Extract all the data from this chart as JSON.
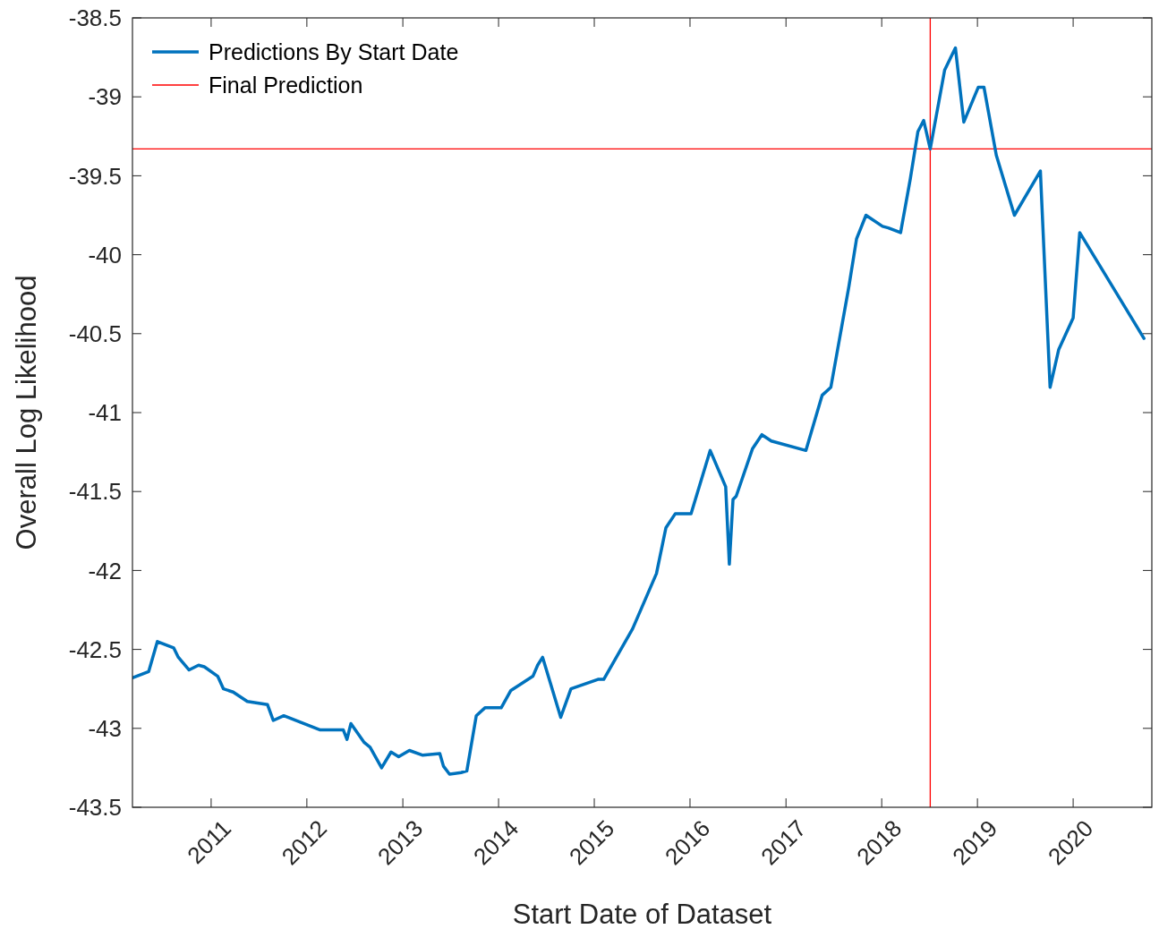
{
  "chart_data": {
    "type": "line",
    "xlabel": "Start Date of Dataset",
    "ylabel": "Overall Log Likelihood",
    "x": [
      "2010-03-07",
      "2010-05-08",
      "2010-06-10",
      "2010-08-11",
      "2010-08-29",
      "2010-10-09",
      "2010-11-14",
      "2010-12-06",
      "2011-01-26",
      "2011-02-17",
      "2011-03-26",
      "2011-05-19",
      "2011-08-04",
      "2011-08-26",
      "2011-10-05",
      "2012-02-21",
      "2012-05-19",
      "2012-06-02",
      "2012-06-17",
      "2012-08-07",
      "2012-08-29",
      "2012-10-12",
      "2012-11-17",
      "2012-12-16",
      "2013-01-26",
      "2013-03-18",
      "2013-05-22",
      "2013-06-05",
      "2013-06-28",
      "2013-08-11",
      "2013-09-02",
      "2013-10-08",
      "2013-11-10",
      "2014-01-11",
      "2014-02-17",
      "2014-05-12",
      "2014-05-30",
      "2014-06-18",
      "2014-08-26",
      "2014-10-04",
      "2015-01-15",
      "2015-02-06",
      "2015-05-27",
      "2015-08-26",
      "2015-10-01",
      "2015-11-06",
      "2016-01-05",
      "2016-03-18",
      "2016-05-16",
      "2016-05-30",
      "2016-06-13",
      "2016-06-25",
      "2016-08-26",
      "2016-10-01",
      "2016-11-06",
      "2017-03-18",
      "2017-05-19",
      "2017-06-21",
      "2017-08-29",
      "2017-09-27",
      "2017-11-02",
      "2018-01-04",
      "2018-01-26",
      "2018-03-14",
      "2018-04-20",
      "2018-05-19",
      "2018-06-10",
      "2018-07-05",
      "2018-08-29",
      "2018-10-09",
      "2018-11-10",
      "2019-01-04",
      "2019-01-26",
      "2019-03-14",
      "2019-05-22",
      "2019-08-29",
      "2019-10-05",
      "2019-11-07",
      "2020-01-01",
      "2020-01-26",
      "2020-09-27"
    ],
    "series": [
      {
        "name": "Predictions By Start Date",
        "color": "#0072bd",
        "values": [
          -42.68,
          -42.64,
          -42.45,
          -42.49,
          -42.55,
          -42.63,
          -42.6,
          -42.61,
          -42.67,
          -42.75,
          -42.77,
          -42.83,
          -42.85,
          -42.95,
          -42.92,
          -43.01,
          -43.01,
          -43.07,
          -42.97,
          -43.09,
          -43.12,
          -43.25,
          -43.15,
          -43.18,
          -43.14,
          -43.17,
          -43.16,
          -43.24,
          -43.29,
          -43.28,
          -43.27,
          -42.92,
          -42.87,
          -42.87,
          -42.76,
          -42.67,
          -42.6,
          -42.55,
          -42.93,
          -42.75,
          -42.69,
          -42.69,
          -42.37,
          -42.02,
          -41.73,
          -41.64,
          -41.64,
          -41.24,
          -41.47,
          -41.96,
          -41.55,
          -41.53,
          -41.23,
          -41.14,
          -41.18,
          -41.24,
          -40.89,
          -40.84,
          -40.2,
          -39.9,
          -39.75,
          -39.82,
          -39.83,
          -39.86,
          -39.52,
          -39.22,
          -39.15,
          -39.33,
          -38.83,
          -38.69,
          -39.16,
          -38.94,
          -38.94,
          -39.37,
          -39.75,
          -39.47,
          -40.84,
          -40.6,
          -40.4,
          -39.86,
          -40.53
        ]
      },
      {
        "name": "Final Prediction",
        "color": "#ff0000",
        "x": [
          "2018-07-05",
          "2018-07-05"
        ],
        "values": [
          -43.5,
          -38.5
        ]
      }
    ],
    "ref_lines": [
      {
        "axis": "y",
        "value": -39.33,
        "color": "#ff0000"
      }
    ],
    "xlim": [
      "2010-03-07",
      "2020-10-27"
    ],
    "xticks": [
      "2011",
      "2012",
      "2013",
      "2014",
      "2015",
      "2016",
      "2017",
      "2018",
      "2019",
      "2020"
    ],
    "ylim": [
      -43.5,
      -38.5
    ],
    "yticks": [
      -43.5,
      -43,
      -42.5,
      -42,
      -41.5,
      -41,
      -40.5,
      -40,
      -39.5,
      -39,
      -38.5
    ],
    "legend": "top left",
    "grid": false
  }
}
